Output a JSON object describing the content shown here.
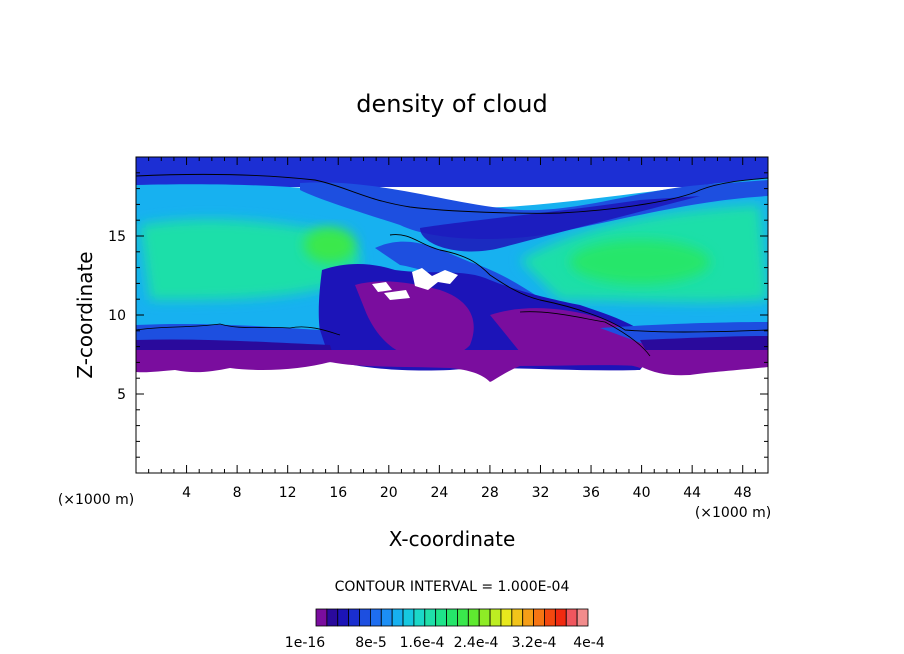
{
  "chart_data": {
    "type": "heatmap",
    "title": "density of cloud",
    "xlabel": "X-coordinate",
    "ylabel": "Z-coordinate",
    "x_unit_left": "(×1000 m)",
    "x_unit_right": "(×1000 m)",
    "xlim": [
      0,
      50
    ],
    "ylim": [
      0,
      20
    ],
    "x_ticks": [
      4,
      8,
      12,
      16,
      20,
      24,
      28,
      32,
      36,
      40,
      44,
      48
    ],
    "y_ticks": [
      5,
      10,
      15
    ],
    "contour_interval_text": "CONTOUR INTERVAL = 1.000E-04",
    "colorbar": {
      "colors": [
        "#7a0d9e",
        "#2a0a9c",
        "#1c14b8",
        "#1a2ecf",
        "#1d4fe0",
        "#1e6ef0",
        "#1c8ff5",
        "#17b1f0",
        "#16c8e0",
        "#1bd8c8",
        "#1fdfa9",
        "#1ee48a",
        "#25e66a",
        "#3ae84c",
        "#5fea30",
        "#8eec26",
        "#bdee22",
        "#e8e81d",
        "#f2c41a",
        "#f59e17",
        "#f67513",
        "#f4480f",
        "#f12a10",
        "#f0565e",
        "#f28c8c"
      ],
      "labels": [
        "1e-16",
        "8e-5",
        "1.6e-4",
        "2.4e-4",
        "3.2e-4",
        "4e-4"
      ]
    },
    "field_notes": "Cloud density field with values mostly between 1e-16 and ~1.6e-4; cloud base near z≈6-7 km, top near z≈19-20 km; data-free (white) region below cloud base and small gaps near x≈18-26, z≈11-12."
  },
  "colors": {
    "purple": "#7a0d9e",
    "deep_blue": "#2a0a9c",
    "blue": "#1d4fe0",
    "mid_blue": "#1c8ff5",
    "cyan": "#17b1f0",
    "teal": "#1fdfa9",
    "green": "#25e66a"
  }
}
